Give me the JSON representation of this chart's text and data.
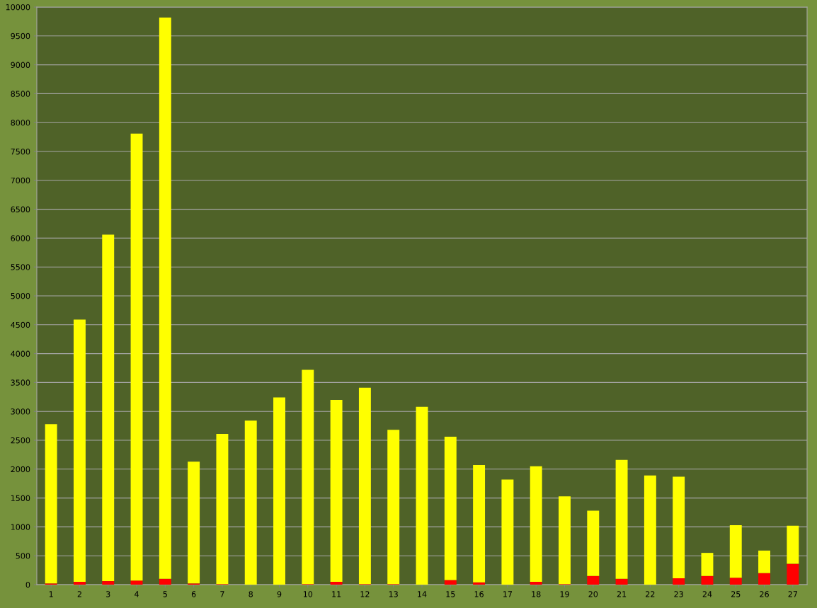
{
  "chart_data": {
    "type": "bar",
    "stacked": true,
    "categories": [
      "1",
      "2",
      "3",
      "4",
      "5",
      "6",
      "7",
      "8",
      "9",
      "10",
      "11",
      "12",
      "13",
      "14",
      "15",
      "16",
      "17",
      "18",
      "19",
      "20",
      "21",
      "22",
      "23",
      "24",
      "25",
      "26",
      "27"
    ],
    "series": [
      {
        "color": "#ff0000",
        "values": [
          20,
          50,
          60,
          70,
          100,
          20,
          10,
          0,
          0,
          10,
          50,
          10,
          10,
          0,
          80,
          40,
          0,
          50,
          10,
          150,
          100,
          0,
          110,
          150,
          120,
          200,
          360
        ]
      },
      {
        "color": "#ffff00",
        "values": [
          2760,
          4540,
          6000,
          7740,
          9720,
          2110,
          2600,
          2840,
          3240,
          3710,
          3150,
          3400,
          2670,
          3080,
          2480,
          2030,
          1820,
          2000,
          1520,
          1130,
          2060,
          1890,
          1760,
          400,
          910,
          390,
          660
        ]
      }
    ],
    "ylim": [
      0,
      10000
    ],
    "yticks": [
      0,
      500,
      1000,
      1500,
      2000,
      2500,
      3000,
      3500,
      4000,
      4500,
      5000,
      5500,
      6000,
      6500,
      7000,
      7500,
      8000,
      8500,
      9000,
      9500,
      10000
    ],
    "grid": "y"
  }
}
